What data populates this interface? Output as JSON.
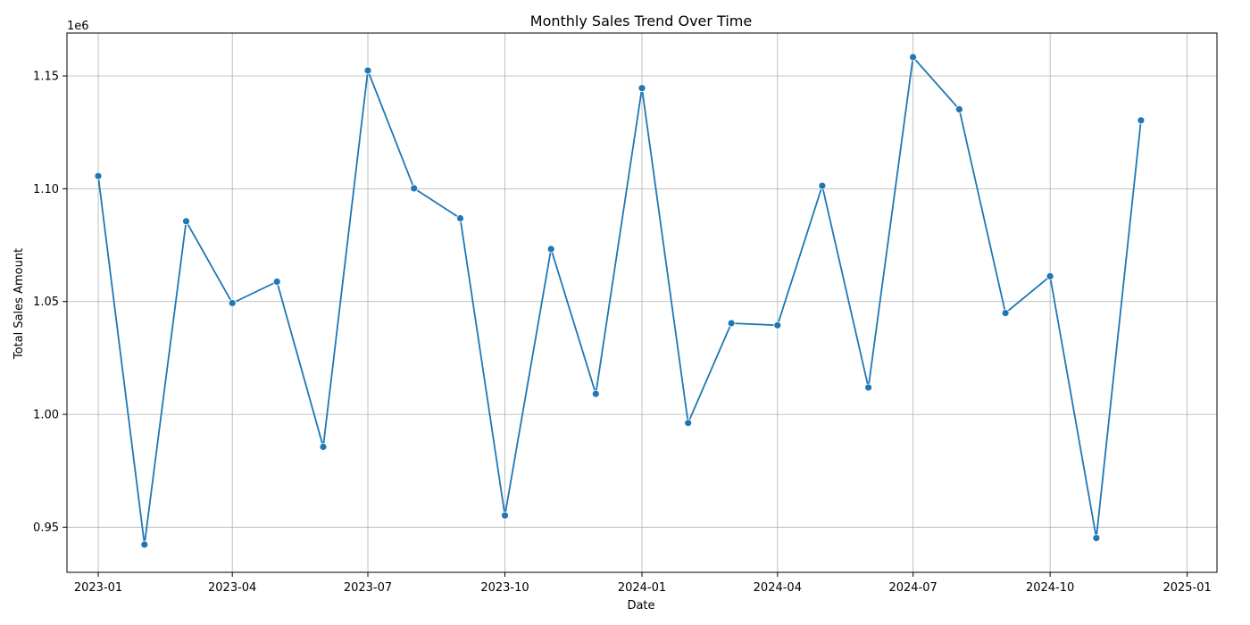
{
  "chart_data": {
    "type": "line",
    "title": "Monthly Sales Trend Over Time",
    "xlabel": "Date",
    "ylabel": "Total Sales Amount",
    "y_offset_label": "1e6",
    "grid": true,
    "x_axis": {
      "type": "date",
      "range": [
        "2022-12-11",
        "2025-01-21"
      ],
      "ticks": [
        "2023-01",
        "2023-04",
        "2023-07",
        "2023-10",
        "2024-01",
        "2024-04",
        "2024-07",
        "2024-10",
        "2025-01"
      ]
    },
    "y_axis": {
      "range": [
        0.93,
        1.169
      ],
      "ticks": [
        "0.95",
        "1.00",
        "1.05",
        "1.10",
        "1.15"
      ]
    },
    "series": [
      {
        "color": "#1f77b4",
        "marker": "circle",
        "x": [
          "2023-01-01",
          "2023-02-01",
          "2023-03-01",
          "2023-04-01",
          "2023-05-01",
          "2023-06-01",
          "2023-07-01",
          "2023-08-01",
          "2023-09-01",
          "2023-10-01",
          "2023-11-01",
          "2023-12-01",
          "2024-01-01",
          "2024-02-01",
          "2024-03-01",
          "2024-04-01",
          "2024-05-01",
          "2024-06-01",
          "2024-07-01",
          "2024-08-01",
          "2024-09-01",
          "2024-10-01",
          "2024-11-01",
          "2024-12-01"
        ],
        "values": [
          1.1056,
          0.9423,
          1.0856,
          1.0493,
          1.0588,
          0.9856,
          1.1524,
          1.1002,
          1.0869,
          0.9552,
          1.0733,
          1.0091,
          1.1446,
          0.9962,
          1.0404,
          1.0395,
          1.1013,
          1.0119,
          1.1583,
          1.1352,
          1.0449,
          1.0612,
          0.9452,
          1.1303
        ]
      }
    ]
  }
}
